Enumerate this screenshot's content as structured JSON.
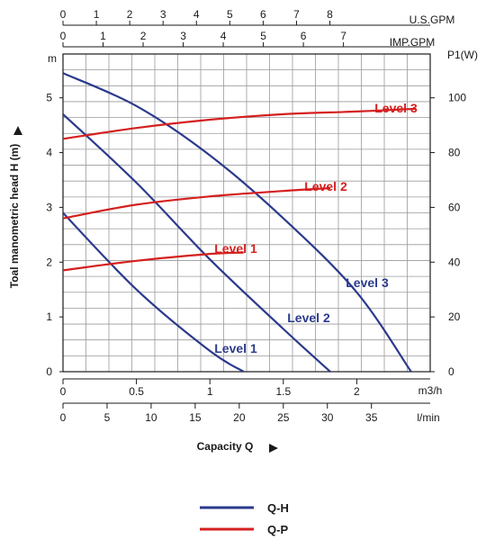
{
  "chart_data": {
    "type": "line",
    "y_axis_label": "Toal manometric head H (m)",
    "y_axis_unit": "m",
    "y_ticks": [
      "0",
      "1",
      "2",
      "3",
      "4",
      "5"
    ],
    "ylim": [
      0,
      5.8
    ],
    "right_axis_unit": "P1(W)",
    "right_ticks": [
      "0",
      "20",
      "40",
      "60",
      "80",
      "100"
    ],
    "right_lim": [
      0,
      116
    ],
    "x_axis_label": "Capacity Q",
    "x_m3h_unit": "m3/h",
    "x_m3h_ticks": [
      "0",
      "0.5",
      "1",
      "1.5",
      "2"
    ],
    "xlim_m3h": [
      0,
      2.5
    ],
    "x_lmin_unit": "l/min",
    "x_lmin_ticks": [
      "0",
      "5",
      "10",
      "15",
      "20",
      "25",
      "30",
      "35"
    ],
    "usgpm_unit": "U.S.GPM",
    "usgpm_ticks": [
      "0",
      "1",
      "2",
      "3",
      "4",
      "5",
      "6",
      "7",
      "8"
    ],
    "impgpm_unit": "IMP.GPM",
    "impgpm_ticks": [
      "0",
      "1",
      "2",
      "3",
      "4",
      "5",
      "6",
      "7"
    ],
    "grid": true,
    "qh_series": [
      {
        "name": "Level 1",
        "x": [
          0,
          0.5,
          1,
          1.23
        ],
        "y": [
          2.9,
          1.5,
          0.38,
          0
        ]
      },
      {
        "name": "Level 2",
        "x": [
          0,
          0.5,
          1,
          1.5,
          1.82
        ],
        "y": [
          4.7,
          3.45,
          2.05,
          0.78,
          0
        ]
      },
      {
        "name": "Level 3",
        "x": [
          0,
          0.5,
          1,
          1.5,
          2,
          2.37
        ],
        "y": [
          5.45,
          4.85,
          3.95,
          2.8,
          1.45,
          0
        ]
      }
    ],
    "qp_series": [
      {
        "name": "Level 1",
        "x": [
          0,
          0.5,
          1,
          1.23
        ],
        "y": [
          37,
          40.5,
          43,
          43.5
        ]
      },
      {
        "name": "Level 2",
        "x": [
          0,
          0.5,
          1,
          1.5,
          1.82
        ],
        "y": [
          56,
          61,
          64,
          66,
          67
        ]
      },
      {
        "name": "Level 3",
        "x": [
          0,
          0.5,
          1,
          1.5,
          2,
          2.4
        ],
        "y": [
          85,
          89,
          92,
          94,
          95,
          96
        ]
      }
    ],
    "legend": [
      {
        "label": "Q-H",
        "color": "#2b3a8c"
      },
      {
        "label": "Q-P",
        "color": "#d4201f"
      }
    ],
    "colors": {
      "qh": "#2b3a8c",
      "qp": "#d4201f"
    }
  }
}
